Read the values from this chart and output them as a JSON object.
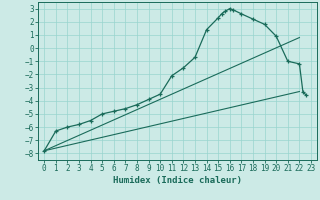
{
  "xlabel": "Humidex (Indice chaleur)",
  "bg_color": "#cceae6",
  "grid_color": "#99d5ce",
  "line_color": "#1a6b5a",
  "xlim": [
    -0.5,
    23.5
  ],
  "ylim": [
    -8.5,
    3.5
  ],
  "xticks": [
    0,
    1,
    2,
    3,
    4,
    5,
    6,
    7,
    8,
    9,
    10,
    11,
    12,
    13,
    14,
    15,
    16,
    17,
    18,
    19,
    20,
    21,
    22,
    23
  ],
  "yticks": [
    -8,
    -7,
    -6,
    -5,
    -4,
    -3,
    -2,
    -1,
    0,
    1,
    2,
    3
  ],
  "curve1_x": [
    0,
    1,
    2,
    3,
    4,
    5,
    6,
    7,
    8,
    9,
    10,
    11,
    12,
    13,
    14,
    15,
    15.3,
    15.6,
    16,
    16.3,
    17,
    18,
    19,
    20,
    21,
    22,
    22.3,
    22.6
  ],
  "curve1_y": [
    -7.8,
    -6.3,
    -6.0,
    -5.8,
    -5.5,
    -5.0,
    -4.8,
    -4.6,
    -4.3,
    -3.9,
    -3.5,
    -2.1,
    -1.5,
    -0.7,
    1.4,
    2.3,
    2.6,
    2.8,
    3.0,
    2.9,
    2.6,
    2.2,
    1.8,
    0.9,
    -1.0,
    -1.2,
    -3.3,
    -3.6
  ],
  "line1_x": [
    0,
    22
  ],
  "line1_y": [
    -7.8,
    -3.3
  ],
  "line2_x": [
    0,
    22
  ],
  "line2_y": [
    -7.8,
    0.8
  ],
  "tick_fontsize": 5.5,
  "xlabel_fontsize": 6.5
}
